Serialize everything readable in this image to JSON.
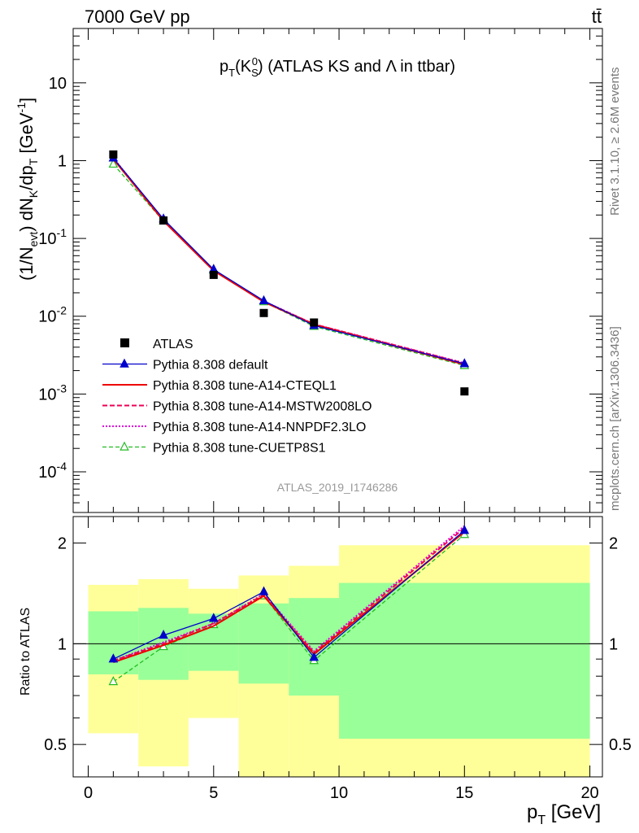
{
  "header": {
    "energy": "7000 GeV pp",
    "process": "tt̄"
  },
  "plot_title": {
    "main": "p",
    "sub": "T",
    "paren_open": "(K",
    "k_sub": "S",
    "k_sup": "0",
    "rest": ") (ATLAS KS and Λ in ttbar)"
  },
  "ylabel_top": "(1/N_evt) dN_K/dp_T [GeV^-1]",
  "ylabel_bottom": "Ratio to ATLAS",
  "xlabel": "p_T [GeV]",
  "watermark": "ATLAS_2019_I1746286",
  "side_text_1": "Rivet 3.1.10, ≥ 2.6M events",
  "side_text_2": "mcplots.cern.ch [arXiv:1306.3436]",
  "colors": {
    "data": "#000000",
    "default": "#0000cc",
    "cteql1": "#ee0000",
    "mstw": "#ee0055",
    "nnpdf": "#dd00dd",
    "cuetp8s1": "#22bb22",
    "band_inner": "#99ff99",
    "band_outer": "#ffff99"
  },
  "legend": [
    {
      "key": "data",
      "label": "ATLAS"
    },
    {
      "key": "default",
      "label": "Pythia 8.308 default"
    },
    {
      "key": "cteql1",
      "label": "Pythia 8.308 tune-A14-CTEQL1"
    },
    {
      "key": "mstw",
      "label": "Pythia 8.308 tune-A14-MSTW2008LO"
    },
    {
      "key": "nnpdf",
      "label": "Pythia 8.308 tune-A14-NNPDF2.3LO"
    },
    {
      "key": "cuetp8s1",
      "label": "Pythia 8.308 tune-CUETP8S1"
    }
  ],
  "chart_data": [
    {
      "type": "scatter",
      "title": "p_T(K_S^0) (ATLAS KS and Λ in ttbar)",
      "xlabel": "p_T [GeV]",
      "ylabel": "(1/N_evt) dN_K/dp_T [GeV^-1]",
      "yscale": "log",
      "xlim": [
        -0.6,
        20.5
      ],
      "ylim": [
        3e-05,
        50
      ],
      "x": [
        1,
        3,
        5,
        7,
        9,
        15
      ],
      "y_tick_labels": [
        "10",
        "1",
        "10^-1",
        "10^-2",
        "10^-3",
        "10^-4"
      ],
      "series": [
        {
          "name": "ATLAS",
          "key": "data",
          "values": [
            1.2,
            0.17,
            0.034,
            0.011,
            0.0083,
            0.00108
          ]
        },
        {
          "name": "Pythia 8.308 default",
          "key": "default",
          "values": [
            1.08,
            0.178,
            0.04,
            0.0158,
            0.0076,
            0.00245
          ]
        },
        {
          "name": "Pythia 8.308 tune-A14-CTEQL1",
          "key": "cteql1",
          "values": [
            1.05,
            0.168,
            0.0385,
            0.0153,
            0.0078,
            0.0024
          ]
        },
        {
          "name": "Pythia 8.308 tune-A14-MSTW2008LO",
          "key": "mstw",
          "values": [
            1.07,
            0.17,
            0.039,
            0.0155,
            0.0079,
            0.00248
          ]
        },
        {
          "name": "Pythia 8.308 tune-A14-NNPDF2.3LO",
          "key": "nnpdf",
          "values": [
            1.08,
            0.172,
            0.0392,
            0.0156,
            0.0079,
            0.0025
          ]
        },
        {
          "name": "Pythia 8.308 tune-CUETP8S1",
          "key": "cuetp8s1",
          "values": [
            0.9,
            0.167,
            0.039,
            0.0153,
            0.0074,
            0.00232
          ]
        }
      ]
    },
    {
      "type": "line",
      "ylabel": "Ratio to ATLAS",
      "xlabel": "p_T [GeV]",
      "yscale": "log",
      "xlim": [
        -0.6,
        20.5
      ],
      "ylim": [
        0.4,
        2.4
      ],
      "x_ticks": [
        "0",
        "5",
        "10",
        "15",
        "20"
      ],
      "y_ticks": [
        "0.5",
        "1",
        "2"
      ],
      "x": [
        1,
        3,
        5,
        7,
        9,
        15
      ],
      "bands": [
        {
          "xlo": 0,
          "xhi": 2,
          "inner": [
            0.81,
            1.25
          ],
          "outer": [
            0.54,
            1.5
          ]
        },
        {
          "xlo": 2,
          "xhi": 4,
          "inner": [
            0.78,
            1.28
          ],
          "outer": [
            0.43,
            1.56
          ]
        },
        {
          "xlo": 4,
          "xhi": 6,
          "inner": [
            0.83,
            1.23
          ],
          "outer": [
            0.6,
            1.46
          ]
        },
        {
          "xlo": 6,
          "xhi": 8,
          "inner": [
            0.76,
            1.32
          ],
          "outer": [
            0.37,
            1.6
          ]
        },
        {
          "xlo": 8,
          "xhi": 10,
          "inner": [
            0.7,
            1.37
          ],
          "outer": [
            0.37,
            1.71
          ]
        },
        {
          "xlo": 10,
          "xhi": 20,
          "inner": [
            0.52,
            1.52
          ],
          "outer": [
            0.37,
            1.97
          ]
        }
      ],
      "series": [
        {
          "name": "Pythia 8.308 default",
          "key": "default",
          "values": [
            0.9,
            1.06,
            1.19,
            1.43,
            0.91,
            2.18
          ]
        },
        {
          "name": "Pythia 8.308 tune-A14-CTEQL1",
          "key": "cteql1",
          "values": [
            0.88,
            0.99,
            1.13,
            1.39,
            0.93,
            2.16
          ]
        },
        {
          "name": "Pythia 8.308 tune-A14-MSTW2008LO",
          "key": "mstw",
          "values": [
            0.89,
            1.0,
            1.15,
            1.4,
            0.94,
            2.22
          ]
        },
        {
          "name": "Pythia 8.308 tune-A14-NNPDF2.3LO",
          "key": "nnpdf",
          "values": [
            0.89,
            1.01,
            1.15,
            1.41,
            0.95,
            2.25
          ]
        },
        {
          "name": "Pythia 8.308 tune-CUETP8S1",
          "key": "cuetp8s1",
          "values": [
            0.77,
            0.98,
            1.14,
            1.39,
            0.89,
            2.12
          ]
        }
      ]
    }
  ]
}
